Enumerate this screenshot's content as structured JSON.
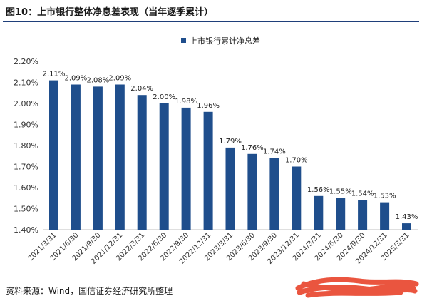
{
  "figure": {
    "title": "图10：上市银行整体净息差表现（当年逐季累计）",
    "source": "资料来源：Wind，国信证券经济研究所整理"
  },
  "colors": {
    "bar": "#1f4e8c",
    "title_rule": "#1f3f7a",
    "scribble": "#e8462f"
  },
  "chart_data": {
    "type": "bar",
    "categories": [
      "2021/3/31",
      "2021/6/30",
      "2021/9/30",
      "2021/12/31",
      "2022/3/31",
      "2022/6/30",
      "2022/9/30",
      "2022/12/31",
      "2023/3/31",
      "2023/6/30",
      "2023/9/30",
      "2023/12/31",
      "2024/3/31",
      "2024/6/30",
      "2024/9/30",
      "2024/12/31",
      "2025/3/31"
    ],
    "series": [
      {
        "name": "上市银行累计净息差",
        "values": [
          2.11,
          2.09,
          2.08,
          2.09,
          2.04,
          2.0,
          1.98,
          1.96,
          1.79,
          1.76,
          1.74,
          1.7,
          1.56,
          1.55,
          1.54,
          1.53,
          1.43
        ],
        "labels": [
          "2.11%",
          "2.09%",
          "2.08%",
          "2.09%",
          "2.04%",
          "2.00%",
          "1.98%",
          "1.96%",
          "1.79%",
          "1.76%",
          "1.74%",
          "1.70%",
          "1.56%",
          "1.55%",
          "1.54%",
          "1.53%",
          "1.43%"
        ]
      }
    ],
    "ylim": [
      1.4,
      2.2
    ],
    "yticks": [
      1.4,
      1.5,
      1.6,
      1.7,
      1.8,
      1.9,
      2.0,
      2.1,
      2.2
    ],
    "ytick_labels": [
      "1.40%",
      "1.50%",
      "1.60%",
      "1.70%",
      "1.80%",
      "1.90%",
      "2.00%",
      "2.10%",
      "2.20%"
    ],
    "legend_position": "top-center",
    "grid": false
  }
}
